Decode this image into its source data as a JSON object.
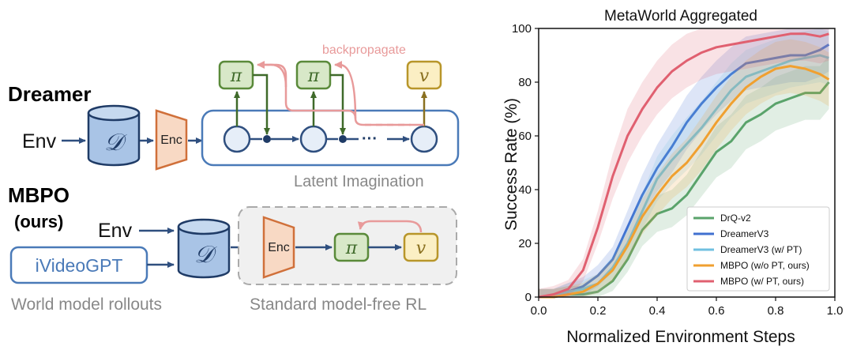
{
  "diagram": {
    "dreamer": {
      "title": "Dreamer",
      "env_label": "Env",
      "buffer_symbol": "𝒟",
      "encoder_label": "Enc",
      "policy_symbol": "π",
      "value_symbol": "𝑣",
      "backprop_label": "backpropagate",
      "ellipsis": "···",
      "latent_label": "Latent Imagination"
    },
    "mbpo": {
      "title": "MBPO",
      "subtitle": "(ours)",
      "env_label": "Env",
      "world_model_label": "iVideoGPT",
      "rollouts_label": "World model rollouts",
      "buffer_symbol": "𝒟",
      "encoder_label": "Enc",
      "policy_symbol": "π",
      "value_symbol": "𝑣",
      "modelfree_label": "Standard model-free RL"
    },
    "colors": {
      "blue_dark": "#2f4f7f",
      "blue_fill": "#a9c4e6",
      "node_fill": "#e6eef8",
      "box_blue": "#4a7ab8",
      "enc_fill": "#f8d9c4",
      "enc_stroke": "#d0703a",
      "pi_fill": "#d8e8c8",
      "pi_stroke": "#5a8a3a",
      "v_fill": "#fbefc4",
      "v_stroke": "#b8962a",
      "backprop": "#e89a9a",
      "gray": "#888888"
    }
  },
  "chart_data": {
    "type": "line",
    "title": "MetaWorld Aggregated",
    "xlabel": "Normalized Environment Steps",
    "ylabel": "Success Rate (%)",
    "xlim": [
      0,
      1
    ],
    "ylim": [
      0,
      100
    ],
    "xticks": [
      "0.0",
      "0.2",
      "0.4",
      "0.6",
      "0.8",
      "1.0"
    ],
    "yticks": [
      "0",
      "20",
      "40",
      "60",
      "80",
      "100"
    ],
    "legend_position": "bottom-right",
    "x": [
      0.0,
      0.05,
      0.1,
      0.15,
      0.2,
      0.25,
      0.3,
      0.35,
      0.4,
      0.45,
      0.5,
      0.55,
      0.6,
      0.65,
      0.7,
      0.75,
      0.8,
      0.85,
      0.9,
      0.95,
      0.98
    ],
    "series": [
      {
        "name": "DrQ-v2",
        "color": "#5aa36b",
        "values": [
          0,
          0,
          1,
          1,
          2,
          6,
          14,
          25,
          31,
          33,
          38,
          46,
          54,
          58,
          65,
          68,
          72,
          74,
          76,
          76,
          80
        ]
      },
      {
        "name": "DreamerV3",
        "color": "#4070d0",
        "values": [
          0,
          0,
          2,
          4,
          8,
          14,
          26,
          38,
          48,
          56,
          65,
          72,
          78,
          83,
          87,
          88,
          89,
          90,
          90,
          92,
          94
        ]
      },
      {
        "name": "DreamerV3 (w/ PT)",
        "color": "#70c0e0",
        "values": [
          0,
          0,
          2,
          3,
          5,
          11,
          20,
          32,
          44,
          51,
          57,
          63,
          70,
          77,
          82,
          84,
          86,
          88,
          89,
          90,
          89
        ]
      },
      {
        "name": "MBPO (w/o PT, ours)",
        "color": "#f0a030",
        "values": [
          0,
          0,
          1,
          2,
          5,
          10,
          19,
          30,
          38,
          45,
          50,
          57,
          65,
          72,
          78,
          82,
          85,
          86,
          85,
          83,
          81
        ]
      },
      {
        "name": "MBPO (w/ PT, ours)",
        "color": "#e06070",
        "values": [
          0,
          1,
          3,
          10,
          26,
          45,
          60,
          70,
          78,
          84,
          88,
          91,
          93,
          94,
          95,
          96,
          97,
          98,
          98,
          97,
          98
        ]
      }
    ]
  }
}
